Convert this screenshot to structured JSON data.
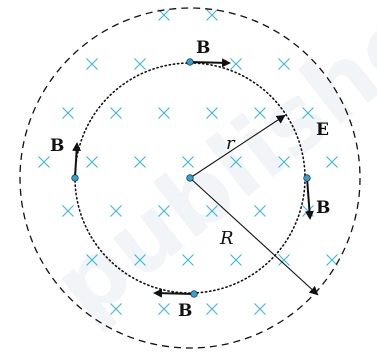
{
  "labels": {
    "radius_inner": "r",
    "radius_outer": "R",
    "electric_field": "E",
    "field_top": "B",
    "field_left": "B",
    "field_right": "B",
    "field_bottom": "B"
  },
  "watermark": "published",
  "colors": {
    "field_cross": "#37b6e0",
    "ink": "#111111",
    "node_fill": "#2aa6d6",
    "watermark": "#e9eef2"
  },
  "icons": {
    "field_into_page": "cross-mark-icon"
  }
}
